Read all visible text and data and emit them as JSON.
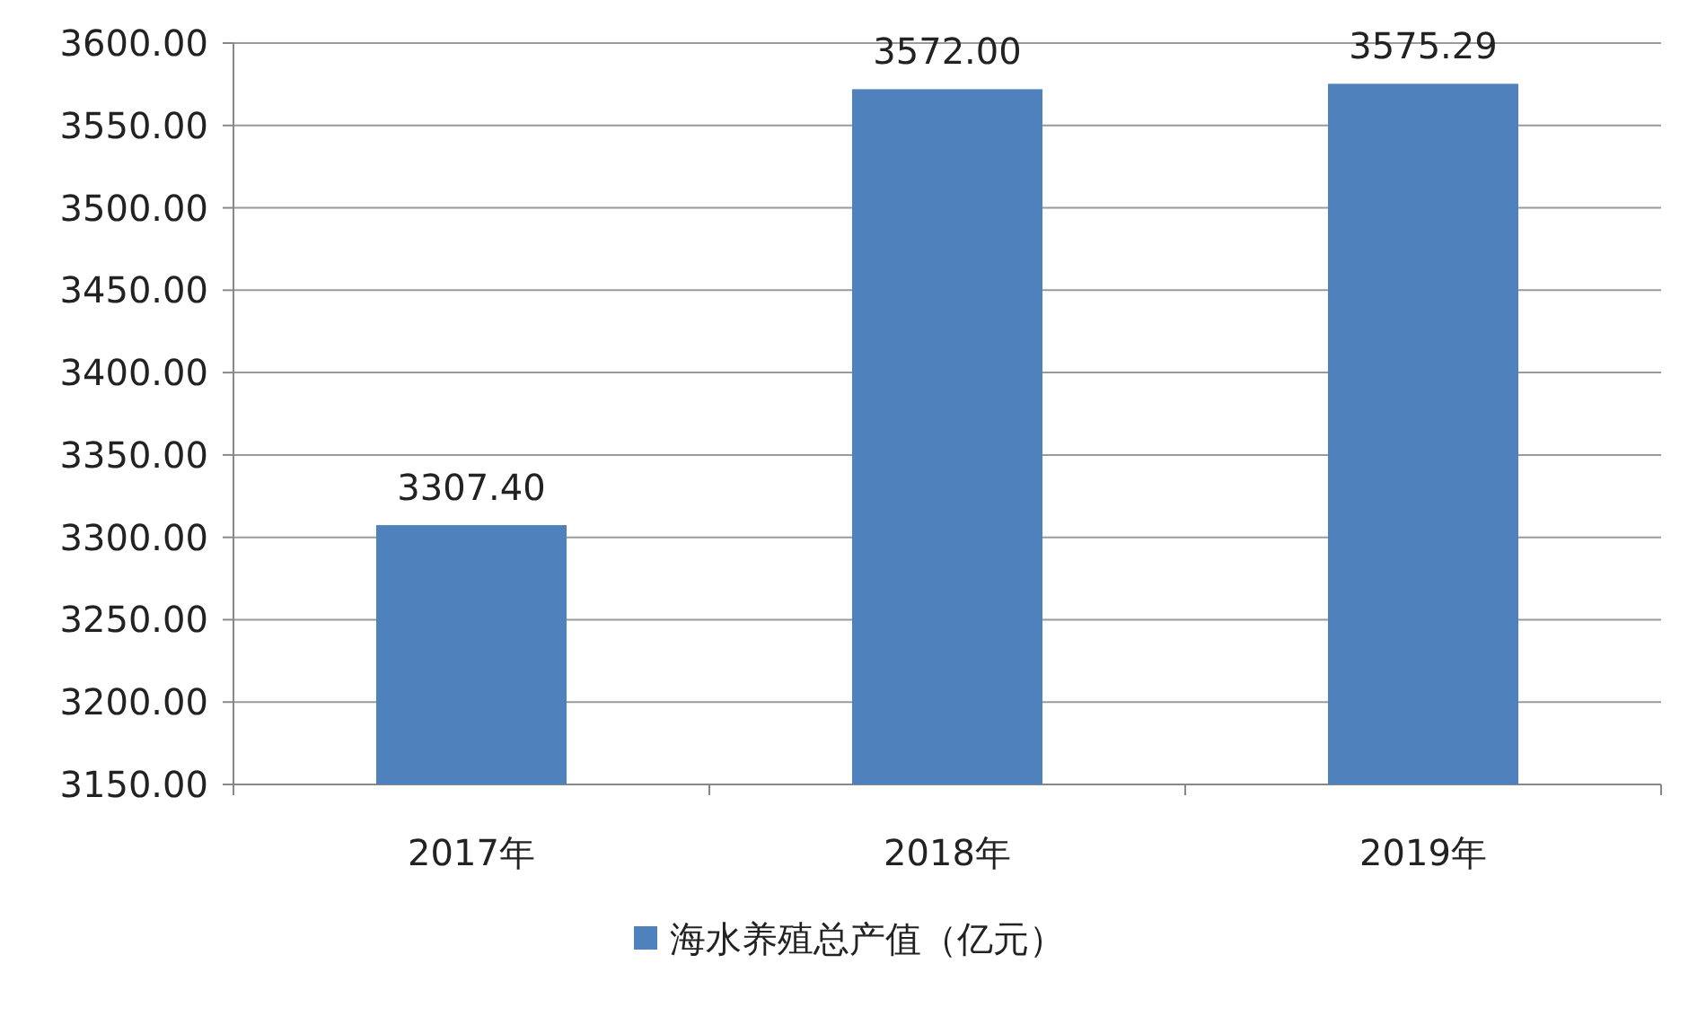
{
  "chart_data": {
    "type": "bar",
    "categories": [
      "2017年",
      "2018年",
      "2019年"
    ],
    "series": [
      {
        "name": "海水养殖总产值（亿元）",
        "color": "#4f81bd",
        "values": [
          3307.4,
          3572.0,
          3575.29
        ],
        "value_labels": [
          "3307.40",
          "3572.00",
          "3575.29"
        ]
      }
    ],
    "ylim": [
      3150,
      3600
    ],
    "yticks": [
      {
        "value": 3150,
        "label": "3150.00"
      },
      {
        "value": 3200,
        "label": "3200.00"
      },
      {
        "value": 3250,
        "label": "3250.00"
      },
      {
        "value": 3300,
        "label": "3300.00"
      },
      {
        "value": 3350,
        "label": "3350.00"
      },
      {
        "value": 3400,
        "label": "3400.00"
      },
      {
        "value": 3450,
        "label": "3450.00"
      },
      {
        "value": 3500,
        "label": "3500.00"
      },
      {
        "value": 3550,
        "label": "3550.00"
      },
      {
        "value": 3600,
        "label": "3600.00"
      }
    ],
    "grid": "y",
    "legend": "bottom"
  }
}
